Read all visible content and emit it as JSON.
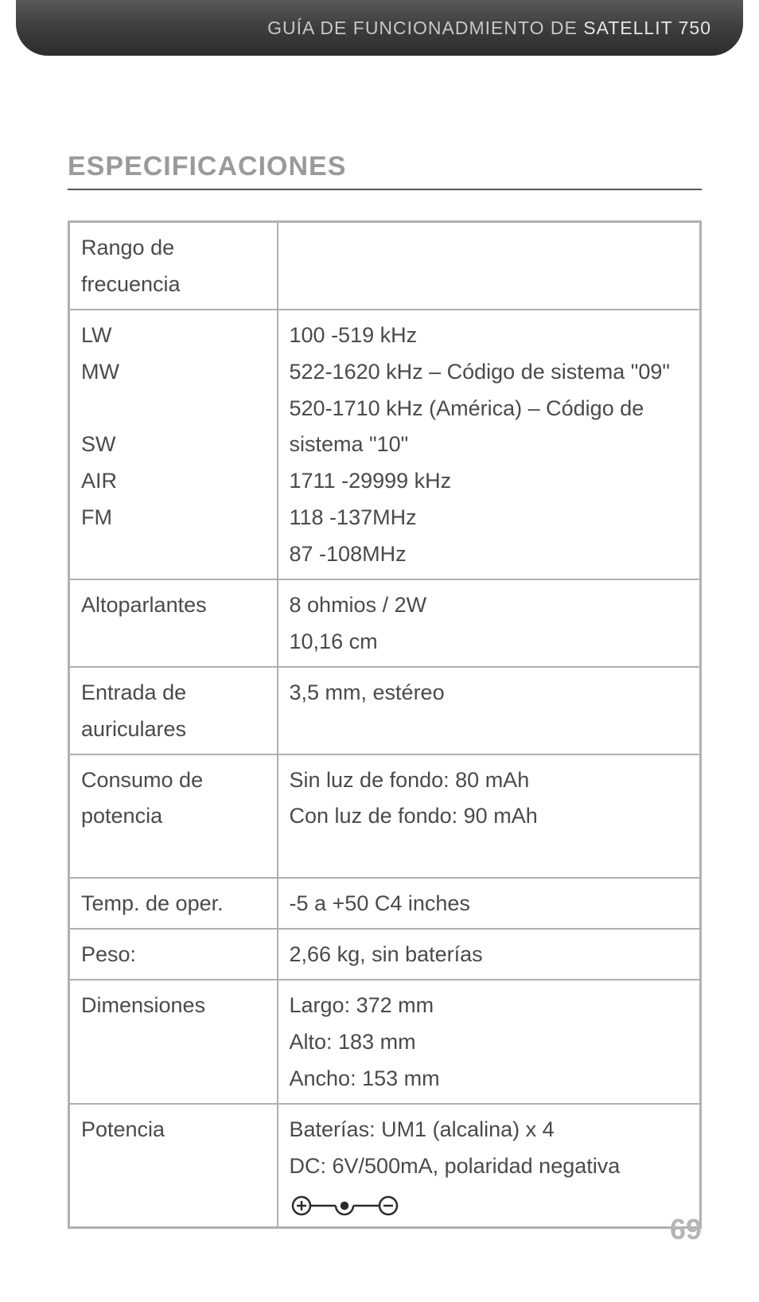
{
  "header": {
    "prefix": "GUÍA DE FUNCIONADMIENTO DE ",
    "product": "SATELLIT 750"
  },
  "section_title": "ESPECIFICACIONES",
  "page_number": "69",
  "colors": {
    "title_gray": "#9a9a9a",
    "rule_gray": "#555555",
    "border_gray": "#b0b0b0",
    "text": "#4a4a4a",
    "pagenum": "#b5b5b5"
  },
  "rows": [
    {
      "label_lines": [
        "Rango de frecuencia"
      ],
      "value_lines": [
        ""
      ]
    },
    {
      "label_lines": [
        "LW",
        "MW",
        "",
        "SW",
        "AIR",
        "FM",
        ""
      ],
      "value_lines": [
        "100 -519 kHz",
        "522-1620 kHz – Código de sistema \"09\"",
        "520-1710 kHz (América) – Código de",
        "sistema \"10\"",
        "1711 -29999 kHz",
        "118 -137MHz",
        "87 -108MHz"
      ]
    },
    {
      "label_lines": [
        "Altoparlantes",
        ""
      ],
      "value_lines": [
        "8 ohmios / 2W",
        "10,16 cm"
      ]
    },
    {
      "label_lines": [
        "Entrada de auriculares"
      ],
      "value_lines": [
        "3,5 mm, estéreo"
      ]
    },
    {
      "label_lines": [
        "Consumo de potencia",
        ""
      ],
      "value_lines": [
        "Sin luz de fondo: 80 mAh",
        "Con luz de fondo: 90 mAh"
      ]
    },
    {
      "label_lines": [
        "Temp. de oper."
      ],
      "value_lines": [
        "-5 a +50 C4 inches"
      ]
    },
    {
      "label_lines": [
        "Peso:"
      ],
      "value_lines": [
        "2,66 kg, sin baterías"
      ]
    },
    {
      "label_lines": [
        "Dimensiones",
        "",
        ""
      ],
      "value_lines": [
        "Largo: 372 mm",
        "Alto: 183 mm",
        "Ancho: 153 mm"
      ]
    },
    {
      "label_lines": [
        "Potencia",
        "",
        ""
      ],
      "value_lines": [
        "Baterías: UM1 (alcalina) x 4",
        "DC: 6V/500mA, polaridad negativa",
        "__POLARITY_ICON__"
      ]
    }
  ]
}
